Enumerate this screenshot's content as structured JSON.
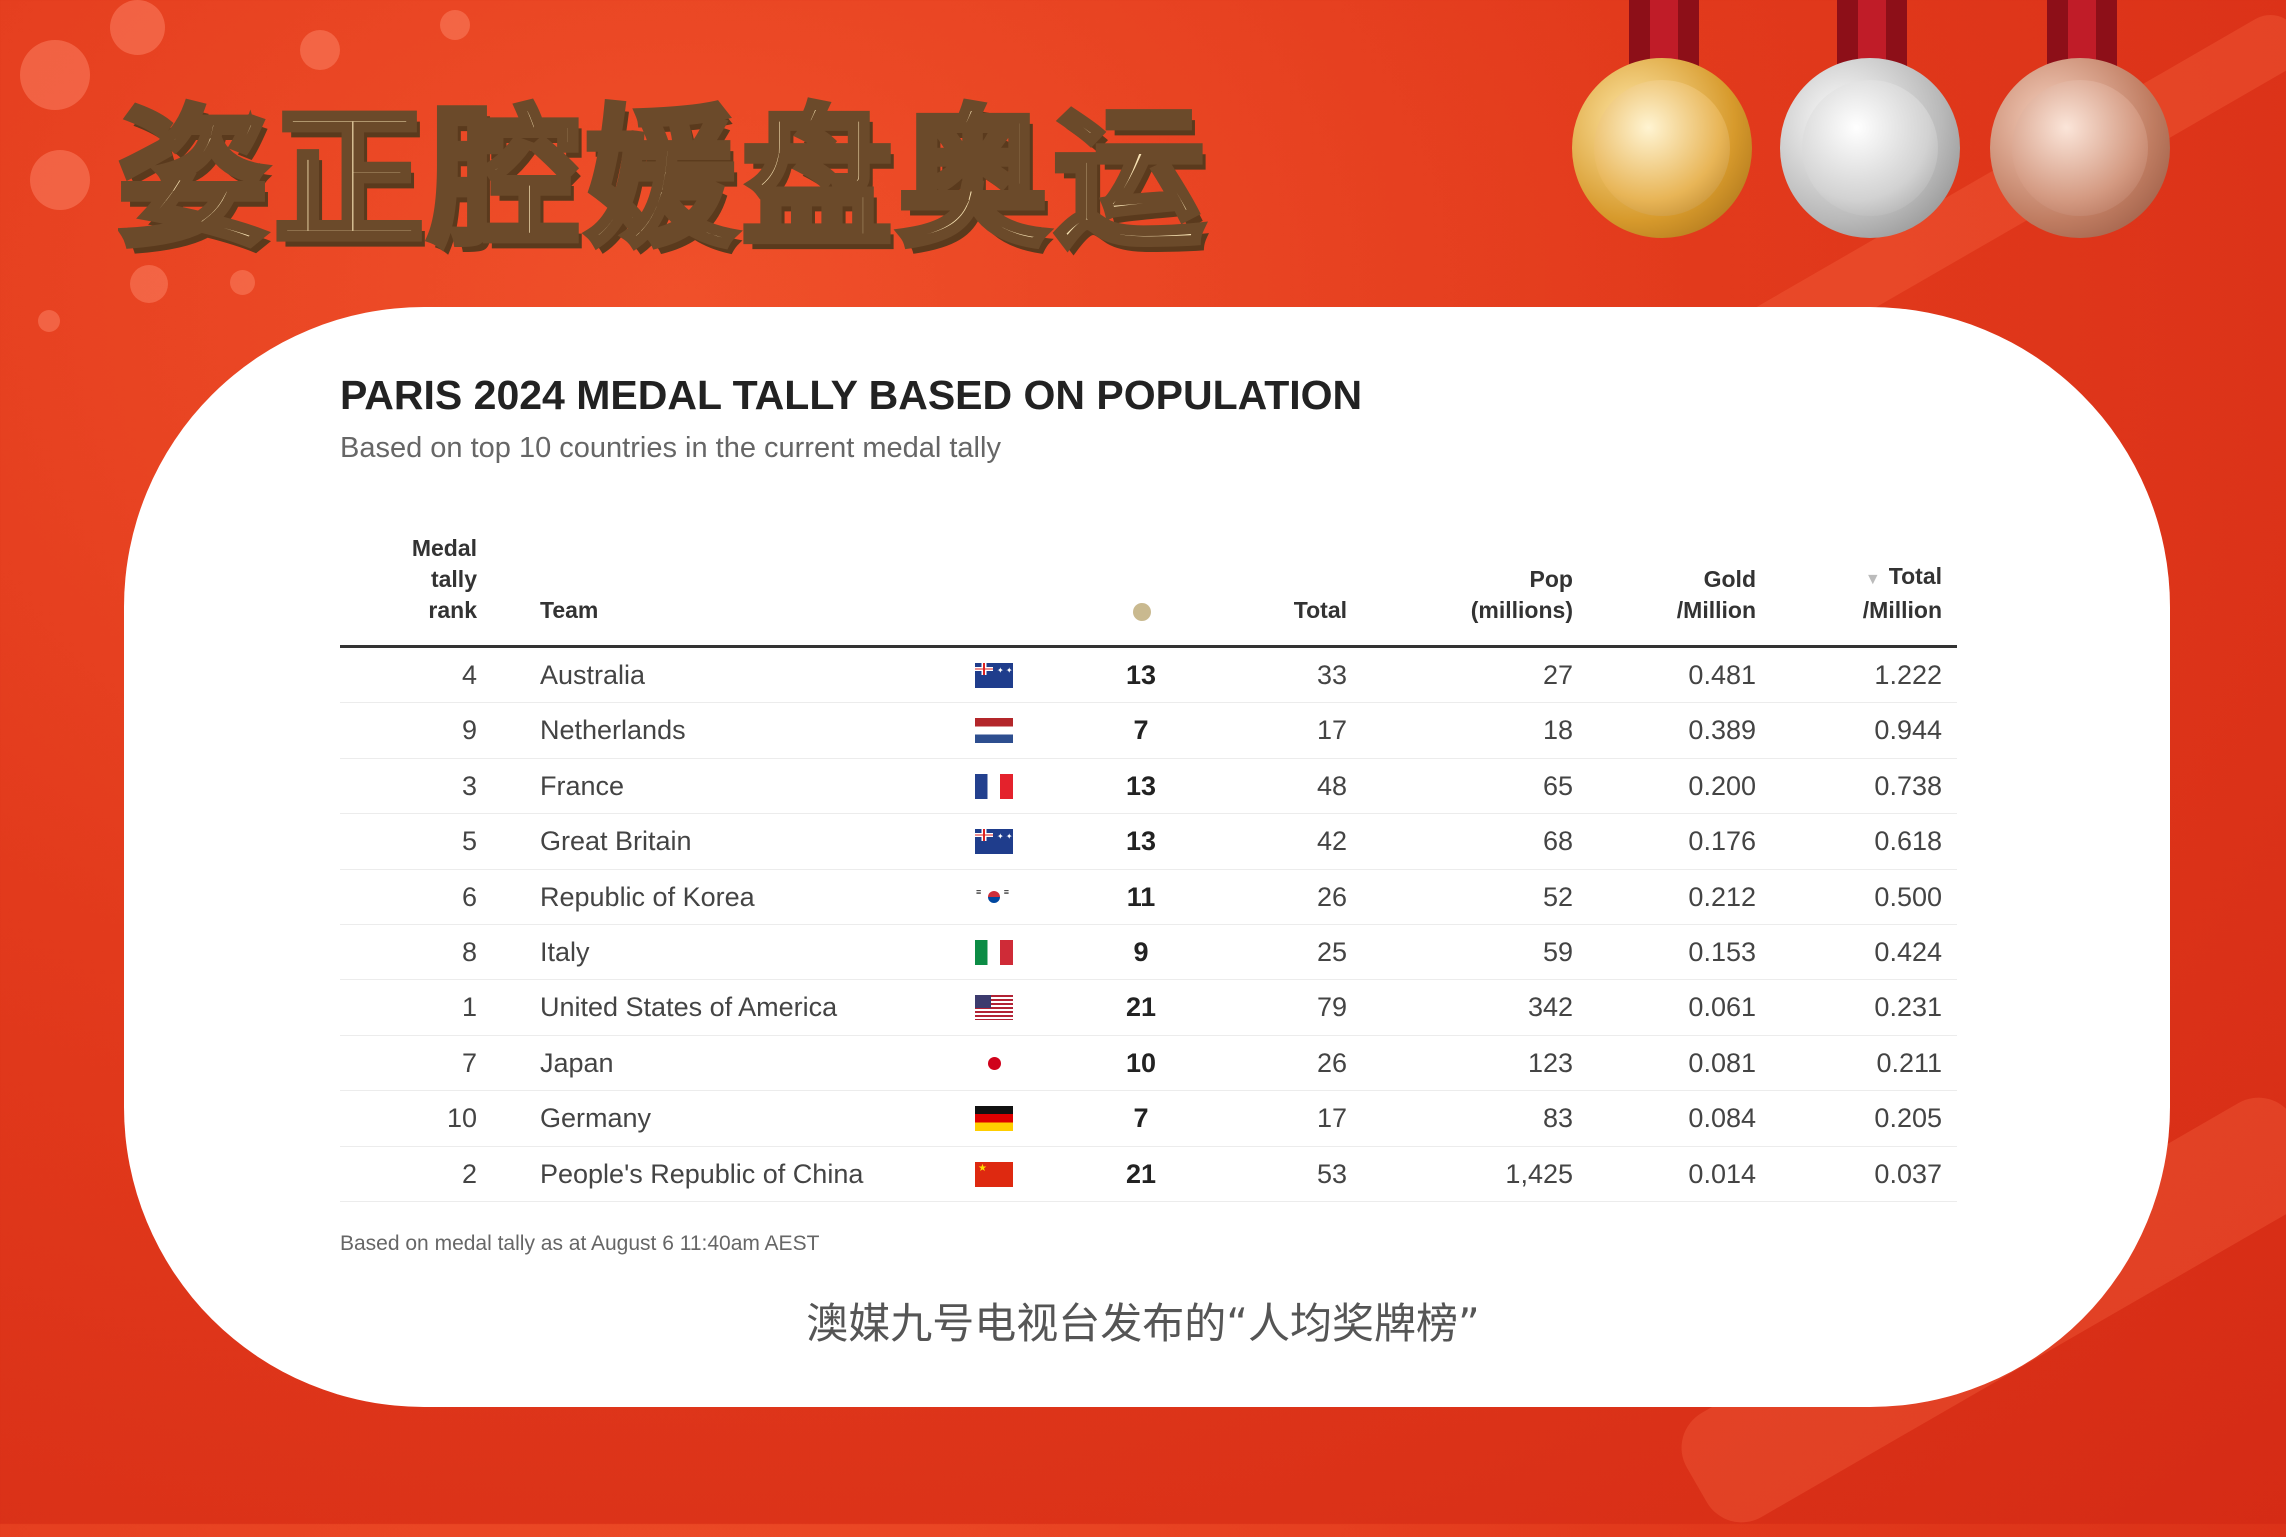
{
  "banner": {
    "title": "姿正腔媛盘奥运"
  },
  "chart": {
    "title": "PARIS 2024 MEDAL TALLY BASED ON POPULATION",
    "subtitle": "Based on top 10 countries in the current medal tally",
    "columns": {
      "rank": [
        "Medal",
        "tally",
        "rank"
      ],
      "team": "Team",
      "total": "Total",
      "pop": [
        "Pop",
        "(millions)"
      ],
      "gold_per_million": [
        "Gold",
        "/Million"
      ],
      "total_per_million": [
        "Total",
        "/Million"
      ],
      "sort_indicator": "▼"
    },
    "footnote": "Based on medal tally as at August 6 11:40am AEST"
  },
  "chart_data": {
    "type": "table",
    "title": "PARIS 2024 MEDAL TALLY BASED ON POPULATION",
    "subtitle": "Based on top 10 countries in the current medal tally",
    "rows": [
      {
        "rank": "4",
        "team": "Australia",
        "flag": "australia-flag",
        "gold": "13",
        "total": "33",
        "pop": "27",
        "gold_per_million": "0.481",
        "total_per_million": "1.222"
      },
      {
        "rank": "9",
        "team": "Netherlands",
        "flag": "netherlands-flag",
        "gold": "7",
        "total": "17",
        "pop": "18",
        "gold_per_million": "0.389",
        "total_per_million": "0.944"
      },
      {
        "rank": "3",
        "team": "France",
        "flag": "france-flag",
        "gold": "13",
        "total": "48",
        "pop": "65",
        "gold_per_million": "0.200",
        "total_per_million": "0.738"
      },
      {
        "rank": "5",
        "team": "Great Britain",
        "flag": "australia-flag",
        "gold": "13",
        "total": "42",
        "pop": "68",
        "gold_per_million": "0.176",
        "total_per_million": "0.618"
      },
      {
        "rank": "6",
        "team": "Republic of Korea",
        "flag": "korea-flag",
        "gold": "11",
        "total": "26",
        "pop": "52",
        "gold_per_million": "0.212",
        "total_per_million": "0.500"
      },
      {
        "rank": "8",
        "team": "Italy",
        "flag": "italy-flag",
        "gold": "9",
        "total": "25",
        "pop": "59",
        "gold_per_million": "0.153",
        "total_per_million": "0.424"
      },
      {
        "rank": "1",
        "team": "United States of America",
        "flag": "usa-flag",
        "gold": "21",
        "total": "79",
        "pop": "342",
        "gold_per_million": "0.061",
        "total_per_million": "0.231"
      },
      {
        "rank": "7",
        "team": "Japan",
        "flag": "japan-flag",
        "gold": "10",
        "total": "26",
        "pop": "123",
        "gold_per_million": "0.081",
        "total_per_million": "0.211"
      },
      {
        "rank": "10",
        "team": "Germany",
        "flag": "germany-flag",
        "gold": "7",
        "total": "17",
        "pop": "83",
        "gold_per_million": "0.084",
        "total_per_million": "0.205"
      },
      {
        "rank": "2",
        "team": "People's Republic of China",
        "flag": "china-flag",
        "gold": "21",
        "total": "53",
        "pop": "1,425",
        "gold_per_million": "0.014",
        "total_per_million": "0.037"
      }
    ]
  },
  "caption": "澳媒九号电视台发布的“人均奖牌榜”",
  "decor": {
    "medals": [
      "gold-medal-icon",
      "silver-medal-icon",
      "bronze-medal-icon"
    ],
    "background_color": "#e23a1c",
    "gold_dot_color": "#c9b98f"
  }
}
